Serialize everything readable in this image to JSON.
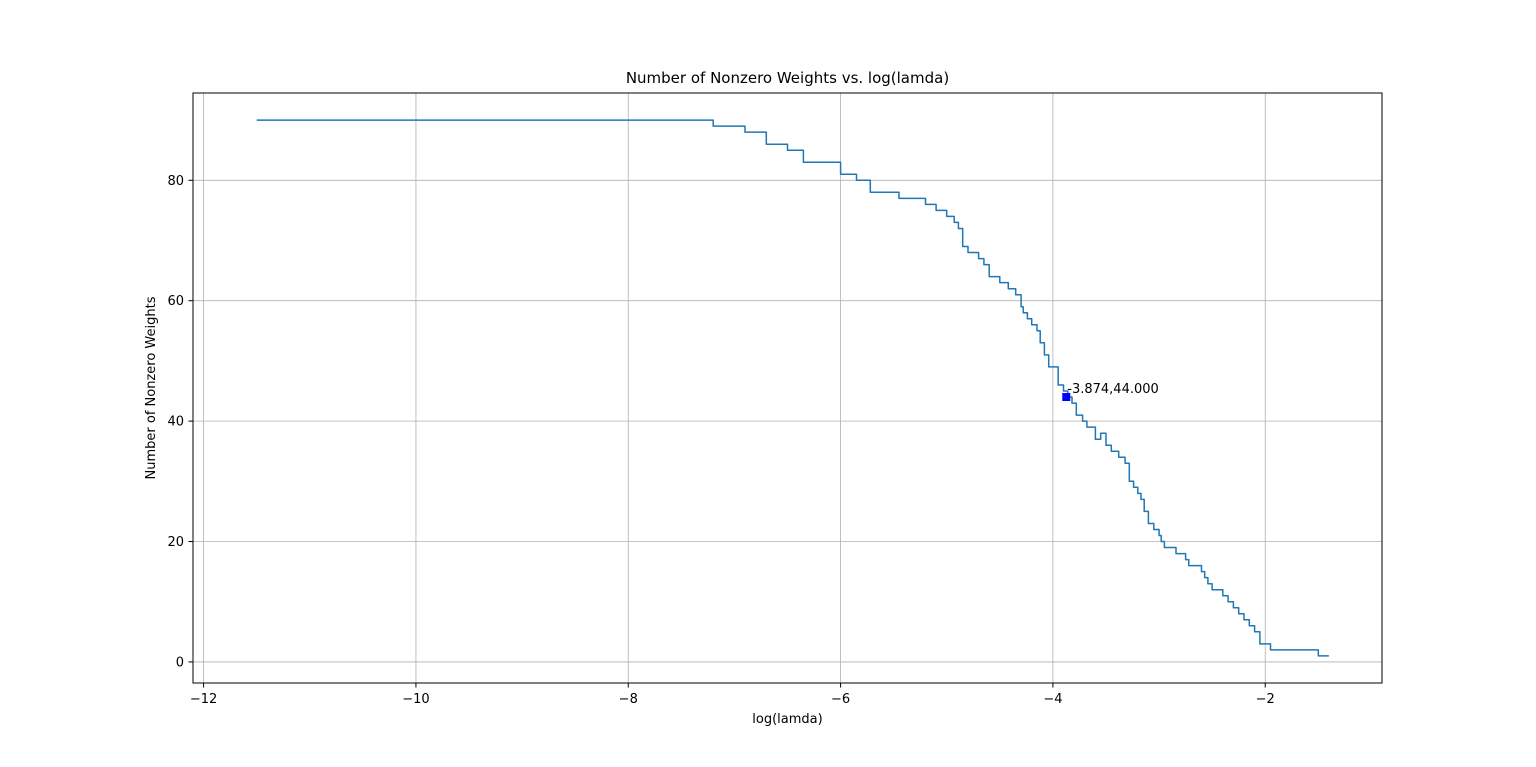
{
  "chart_data": {
    "type": "line",
    "title": "Number of Nonzero Weights vs. log(lamda)",
    "xlabel": "log(lamda)",
    "ylabel": "Number of Nonzero Weights",
    "xlim": [
      -12.1,
      -0.9
    ],
    "ylim": [
      -3.5,
      94.5
    ],
    "xticks": [
      -12,
      -10,
      -8,
      -6,
      -4,
      -2
    ],
    "xtick_labels": [
      "−12",
      "−10",
      "−8",
      "−6",
      "−4",
      "−2"
    ],
    "yticks": [
      0,
      20,
      40,
      60,
      80
    ],
    "ytick_labels": [
      "0",
      "20",
      "40",
      "60",
      "80"
    ],
    "grid": true,
    "line_color": "#1f77b4",
    "series": [
      {
        "x": [
          -11.5,
          -7.6,
          -7.2,
          -6.9,
          -6.7,
          -6.5,
          -6.35,
          -6.2,
          -6.0,
          -5.9,
          -5.85,
          -5.8,
          -5.72,
          -5.55,
          -5.45,
          -5.25,
          -5.2,
          -5.1,
          -5.0,
          -4.93,
          -4.89,
          -4.85,
          -4.8,
          -4.7,
          -4.65,
          -4.6,
          -4.5,
          -4.42,
          -4.35,
          -4.3,
          -4.28,
          -4.24,
          -4.2,
          -4.15,
          -4.12,
          -4.08,
          -4.04,
          -4.0,
          -3.95,
          -3.9,
          -3.86,
          -3.82,
          -3.78,
          -3.72,
          -3.68,
          -3.6,
          -3.55,
          -3.5,
          -3.45,
          -3.38,
          -3.32,
          -3.28,
          -3.24,
          -3.2,
          -3.17,
          -3.14,
          -3.1,
          -3.05,
          -3.0,
          -2.98,
          -2.95,
          -2.88,
          -2.84,
          -2.8,
          -2.75,
          -2.72,
          -2.65,
          -2.6,
          -2.57,
          -2.54,
          -2.5,
          -2.45,
          -2.4,
          -2.35,
          -2.3,
          -2.25,
          -2.2,
          -2.15,
          -2.1,
          -2.05,
          -1.95,
          -1.78,
          -1.5,
          -1.4
        ],
        "y": [
          90,
          90,
          89,
          88,
          86,
          85,
          83,
          83,
          81,
          81,
          80,
          80,
          78,
          78,
          77,
          77,
          76,
          75,
          74,
          73,
          72,
          69,
          68,
          67,
          66,
          64,
          63,
          62,
          61,
          59,
          58,
          57,
          56,
          55,
          53,
          51,
          49,
          49,
          46,
          45,
          44,
          43,
          41,
          40,
          39,
          37,
          38,
          36,
          35,
          34,
          33,
          30,
          29,
          28,
          27,
          25,
          23,
          22,
          21,
          20,
          19,
          19,
          18,
          18,
          17,
          16,
          16,
          15,
          14,
          13,
          12,
          12,
          11,
          10,
          9,
          8,
          7,
          6,
          5,
          3,
          2,
          2,
          1,
          1
        ]
      }
    ],
    "marker": {
      "x": -3.874,
      "y": 44.0,
      "label": "-3.874,44.000",
      "color": "#0000ff"
    }
  }
}
